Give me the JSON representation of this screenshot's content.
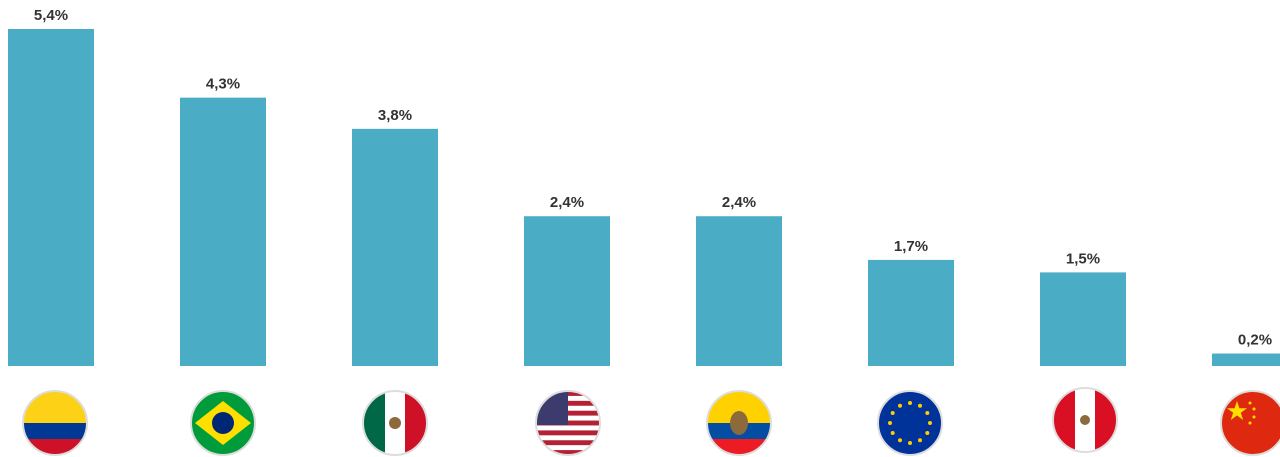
{
  "chart_data": {
    "type": "bar",
    "categories": [
      null,
      null,
      null,
      null,
      null,
      null,
      null,
      null
    ],
    "values": [
      5.4,
      4.3,
      3.8,
      2.4,
      2.4,
      1.7,
      1.5,
      0.2
    ],
    "value_labels": [
      "5,4%",
      "4,3%",
      "3,8%",
      "2,4%",
      "2,4%",
      "1,7%",
      "1,5%",
      "0,2%"
    ],
    "color": "#4bacc6"
  }
}
